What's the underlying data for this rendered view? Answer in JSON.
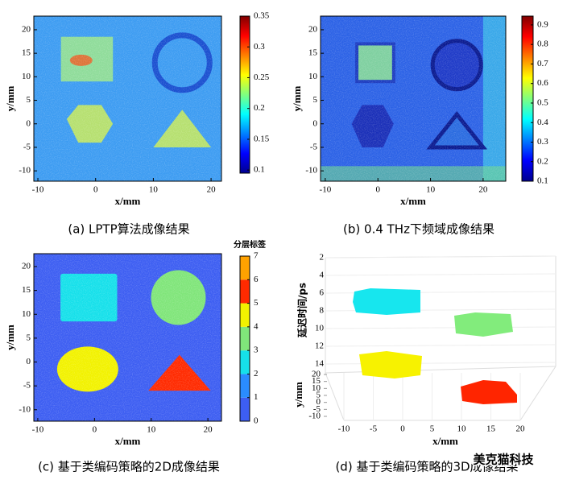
{
  "chart_data": [
    {
      "type": "heatmap",
      "title": "(a) LPTP算法成像结果",
      "xlabel": "x/mm",
      "ylabel": "y/mm",
      "xlim": [
        -10.7,
        21.8
      ],
      "ylim": [
        -12.2,
        22.9
      ],
      "xticks": [
        -10,
        0,
        10,
        20
      ],
      "yticks": [
        -10,
        -5,
        0,
        5,
        10,
        15,
        20
      ],
      "colormap": "jet",
      "clim": [
        0.095,
        0.35
      ],
      "cticks": [
        0.1,
        0.15,
        0.2,
        0.25,
        0.3,
        0.35
      ]
    },
    {
      "type": "heatmap",
      "title": "(b) 0.4 THz下频域成像结果",
      "xlabel": "x/mm",
      "ylabel": "y/mm",
      "xlim": [
        -10.9,
        24.3
      ],
      "ylim": [
        -12.2,
        22.9
      ],
      "xticks": [
        -10,
        0,
        10,
        20
      ],
      "yticks": [
        -10,
        -5,
        0,
        5,
        10,
        15,
        20
      ],
      "colormap": "jet",
      "clim": [
        0.1,
        0.945
      ],
      "cticks": [
        0.1,
        0.2,
        0.3,
        0.4,
        0.5,
        0.6,
        0.7,
        0.8,
        0.9
      ]
    },
    {
      "type": "heatmap",
      "title": "(c) 基于类编码策略的2D成像结果",
      "xlabel": "x/mm",
      "ylabel": "y/mm",
      "xlim": [
        -10.7,
        22.4
      ],
      "ylim": [
        -12.4,
        22.7
      ],
      "xticks": [
        -10,
        0,
        10,
        20
      ],
      "yticks": [
        -10,
        -5,
        0,
        5,
        10,
        15,
        20
      ],
      "colorbar_title": "分层标签",
      "clim": [
        0,
        7
      ],
      "cticks": [
        0,
        1,
        2,
        3,
        4,
        5,
        6,
        7
      ],
      "colors": [
        "#3d5ef2",
        "#2a8cff",
        "#16e0ea",
        "#80e57a",
        "#f2f200",
        "#ff2a00",
        "#ffa200"
      ]
    },
    {
      "type": "scatter3d",
      "title": "(d) 基于类编码策略的3D成像结果",
      "xlabel": "x/mm",
      "ylabel": "y/mm",
      "zlabel": "延迟时间/ps",
      "xlim": [
        -10,
        20
      ],
      "ylim": [
        -10,
        20
      ],
      "zlim": [
        2,
        14
      ],
      "xticks": [
        -10,
        -5,
        0,
        5,
        10,
        15,
        20
      ],
      "yticks": [
        -10,
        -5,
        0,
        5,
        10,
        15,
        20
      ],
      "zticks": [
        2,
        4,
        6,
        8,
        10,
        12,
        14
      ]
    }
  ],
  "watermark": "美克猫科技"
}
